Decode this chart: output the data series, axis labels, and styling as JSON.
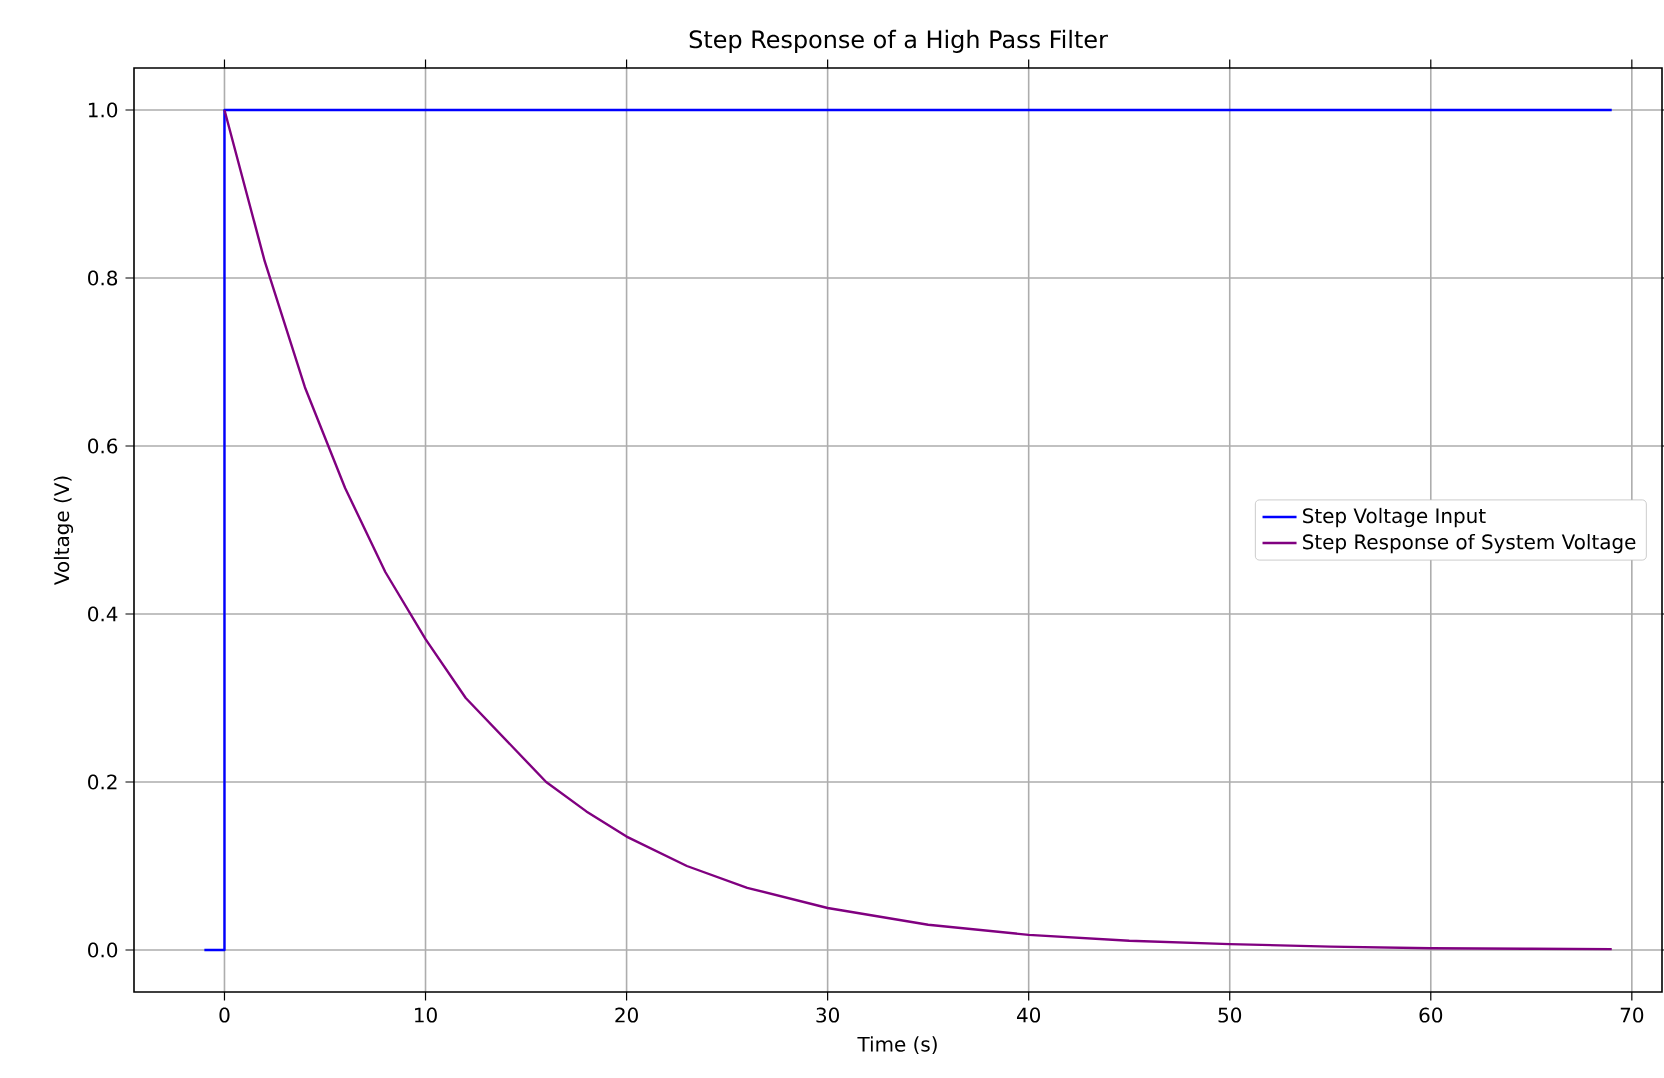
{
  "chart_data": {
    "type": "line",
    "title": "Step Response of a High Pass Filter",
    "xlabel": "Time (s)",
    "ylabel": "Voltage (V)",
    "series": [
      {
        "name": "Step Voltage Input",
        "color": "#0000ff",
        "x": [
          -1,
          0,
          0,
          69
        ],
        "values": [
          0,
          0,
          1,
          1
        ]
      },
      {
        "name": "Step Response of System Voltage",
        "color": "#800080",
        "x": [
          0,
          2,
          4,
          6,
          8,
          10,
          12,
          14,
          16,
          18,
          20,
          23,
          26,
          30,
          35,
          40,
          45,
          50,
          55,
          60,
          65,
          69
        ],
        "values": [
          1.0,
          0.82,
          0.67,
          0.55,
          0.45,
          0.37,
          0.3,
          0.25,
          0.2,
          0.165,
          0.135,
          0.1,
          0.074,
          0.05,
          0.03,
          0.018,
          0.011,
          0.007,
          0.004,
          0.002,
          0.0015,
          0.001
        ]
      }
    ],
    "xlim": [
      -4.5,
      71.5
    ],
    "ylim": [
      -0.05,
      1.05
    ],
    "xticks": [
      0,
      10,
      20,
      30,
      40,
      50,
      60,
      70
    ],
    "yticks": [
      {
        "value": 0,
        "label": "0.0"
      },
      {
        "value": 0.2,
        "label": "0.2"
      },
      {
        "value": 0.4,
        "label": "0.4"
      },
      {
        "value": 0.6,
        "label": "0.6"
      },
      {
        "value": 0.8,
        "label": "0.8"
      },
      {
        "value": 1.0,
        "label": "1.0"
      }
    ],
    "grid": true,
    "legend": "right"
  }
}
